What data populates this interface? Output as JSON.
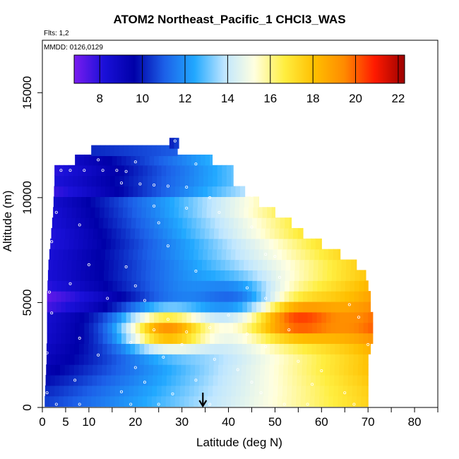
{
  "chart_data": {
    "type": "heatmap",
    "title": "ATOM2 Northeast_Pacific_1 CHCl3_WAS",
    "flights_note": "Flts: 1,2",
    "dates_note": "MMDD: 0126,0129",
    "xlabel": "Latitude (deg N)",
    "ylabel": "Altitude (m)",
    "xlim": [
      0,
      85
    ],
    "ylim": [
      0,
      17500
    ],
    "x_ticks": [
      0,
      5,
      10,
      20,
      30,
      40,
      50,
      60,
      70,
      80
    ],
    "x_minor_ticks": [
      15,
      25,
      35,
      45,
      55,
      65,
      75,
      85
    ],
    "y_ticks": [
      0,
      5000,
      10000,
      15000
    ],
    "colorbar": {
      "min": 6.8,
      "max": 22.3,
      "ticks": [
        8,
        10,
        12,
        14,
        16,
        18,
        20,
        22
      ],
      "colors": [
        "#7a1cf0",
        "#1a10d8",
        "#0000a8",
        "#1c60e8",
        "#21a8ff",
        "#bfe6ff",
        "#ffffe0",
        "#ffee40",
        "#ffbf00",
        "#ff8a00",
        "#ff1a00",
        "#9c0000"
      ]
    },
    "marker": {
      "latitude": 34.5,
      "symbol": "down-arrow"
    },
    "profile_rows": [
      {
        "alt": 12600,
        "lat_min": 27.3,
        "lat_max": 29.3,
        "c_start": 10.0,
        "c_end": 10.6
      },
      {
        "alt": 12250,
        "lat_min": 10.5,
        "lat_max": 29.0,
        "c_start": 10.2,
        "c_end": 11.0
      },
      {
        "alt": 11800,
        "lat_min": 7.0,
        "lat_max": 36.5,
        "c_start": 8.8,
        "c_end": 12.6
      },
      {
        "alt": 11300,
        "lat_min": 2.6,
        "lat_max": 41.0,
        "c_start": 8.0,
        "c_end": 13.0
      },
      {
        "alt": 10800,
        "lat_min": 2.6,
        "lat_max": 41.0,
        "c_start": 8.2,
        "c_end": 13.0
      },
      {
        "alt": 10300,
        "lat_min": 2.5,
        "lat_max": 43.5,
        "c_start": 7.8,
        "c_end": 13.8
      },
      {
        "alt": 9800,
        "lat_min": 2.4,
        "lat_max": 46.5,
        "c_start": 8.6,
        "c_end": 15.6
      },
      {
        "alt": 9300,
        "lat_min": 2.3,
        "lat_max": 50.0,
        "c_start": 8.4,
        "c_end": 16.3
      },
      {
        "alt": 8800,
        "lat_min": 2.1,
        "lat_max": 53.5,
        "c_start": 8.3,
        "c_end": 16.6
      },
      {
        "alt": 8300,
        "lat_min": 1.9,
        "lat_max": 56.0,
        "c_start": 8.1,
        "c_end": 16.9
      },
      {
        "alt": 7800,
        "lat_min": 1.7,
        "lat_max": 60.0,
        "c_start": 8.1,
        "c_end": 17.0
      },
      {
        "alt": 7300,
        "lat_min": 1.5,
        "lat_max": 64.0,
        "c_start": 8.3,
        "c_end": 17.3
      },
      {
        "alt": 6800,
        "lat_min": 1.3,
        "lat_max": 67.5,
        "c_start": 8.3,
        "c_end": 17.5
      },
      {
        "alt": 6300,
        "lat_min": 1.2,
        "lat_max": 69.5,
        "c_start": 8.3,
        "c_end": 17.8
      },
      {
        "alt": 5800,
        "lat_min": 1.1,
        "lat_max": 70.0,
        "c_start": 8.0,
        "c_end": 18.3
      },
      {
        "alt": 5300,
        "lat_min": 1.0,
        "lat_max": 70.5,
        "c_start": 7.2,
        "c_end": 18.8
      },
      {
        "alt": 4800,
        "lat_min": 1.0,
        "lat_max": 70.5,
        "c_start": 7.6,
        "c_end": 19.3
      },
      {
        "alt": 4300,
        "lat_min": 1.0,
        "lat_max": 71.0,
        "c_start": 8.5,
        "c_end": 19.8
      },
      {
        "alt": 3800,
        "lat_min": 1.0,
        "lat_max": 71.0,
        "c_start": 8.6,
        "c_end": 20.0
      },
      {
        "alt": 3300,
        "lat_min": 1.0,
        "lat_max": 71.0,
        "c_start": 8.7,
        "c_end": 19.2
      },
      {
        "alt": 2800,
        "lat_min": 0.9,
        "lat_max": 70.5,
        "c_start": 8.9,
        "c_end": 18.4
      },
      {
        "alt": 2300,
        "lat_min": 0.9,
        "lat_max": 70.0,
        "c_start": 9.1,
        "c_end": 18.0
      },
      {
        "alt": 1800,
        "lat_min": 0.8,
        "lat_max": 70.0,
        "c_start": 9.4,
        "c_end": 18.0
      },
      {
        "alt": 1300,
        "lat_min": 0.7,
        "lat_max": 70.0,
        "c_start": 9.8,
        "c_end": 17.8
      },
      {
        "alt": 800,
        "lat_min": 0.6,
        "lat_max": 70.0,
        "c_start": 10.2,
        "c_end": 17.6
      },
      {
        "alt": 300,
        "lat_min": 0.5,
        "lat_max": 70.0,
        "c_start": 10.5,
        "c_end": 17.5
      }
    ],
    "hotspots": [
      {
        "lat": 55,
        "alt": 4200,
        "value": 21.2
      },
      {
        "lat": 27,
        "alt": 3700,
        "value": 20.5
      },
      {
        "lat": 40,
        "alt": 5300,
        "value": 10.8
      }
    ],
    "sample_points": [
      {
        "lat": 28.5,
        "alt": 12700
      },
      {
        "lat": 4,
        "alt": 11300
      },
      {
        "lat": 6,
        "alt": 11300
      },
      {
        "lat": 9,
        "alt": 11300
      },
      {
        "lat": 13,
        "alt": 11300
      },
      {
        "lat": 16,
        "alt": 11300
      },
      {
        "lat": 18,
        "alt": 11250
      },
      {
        "lat": 12,
        "alt": 11800
      },
      {
        "lat": 20,
        "alt": 11700
      },
      {
        "lat": 33,
        "alt": 11600
      },
      {
        "lat": 17,
        "alt": 10700
      },
      {
        "lat": 21,
        "alt": 10650
      },
      {
        "lat": 24,
        "alt": 10600
      },
      {
        "lat": 27,
        "alt": 10550
      },
      {
        "lat": 31,
        "alt": 10500
      },
      {
        "lat": 2,
        "alt": 10200
      },
      {
        "lat": 36,
        "alt": 10000
      },
      {
        "lat": 45,
        "alt": 10100
      },
      {
        "lat": 55,
        "alt": 9900
      },
      {
        "lat": 24,
        "alt": 9600
      },
      {
        "lat": 31,
        "alt": 9500
      },
      {
        "lat": 38,
        "alt": 9300
      },
      {
        "lat": 3,
        "alt": 9300
      },
      {
        "lat": 8,
        "alt": 8700
      },
      {
        "lat": 25,
        "alt": 8800
      },
      {
        "lat": 45,
        "alt": 8600
      },
      {
        "lat": 2,
        "alt": 7900
      },
      {
        "lat": 27,
        "alt": 7700
      },
      {
        "lat": 48,
        "alt": 7300
      },
      {
        "lat": 50,
        "alt": 7200
      },
      {
        "lat": 10,
        "alt": 6800
      },
      {
        "lat": 18,
        "alt": 6700
      },
      {
        "lat": 33,
        "alt": 6500
      },
      {
        "lat": 51,
        "alt": 6200
      },
      {
        "lat": 6,
        "alt": 5900
      },
      {
        "lat": 20,
        "alt": 5800
      },
      {
        "lat": 44,
        "alt": 5700
      },
      {
        "lat": 1.5,
        "alt": 5500
      },
      {
        "lat": 14,
        "alt": 5200
      },
      {
        "lat": 22,
        "alt": 5100
      },
      {
        "lat": 48,
        "alt": 5200
      },
      {
        "lat": 66,
        "alt": 4900
      },
      {
        "lat": 2,
        "alt": 4500
      },
      {
        "lat": 27,
        "alt": 4200
      },
      {
        "lat": 40,
        "alt": 4400
      },
      {
        "lat": 68,
        "alt": 4300
      },
      {
        "lat": 24,
        "alt": 3700
      },
      {
        "lat": 31,
        "alt": 3600
      },
      {
        "lat": 36,
        "alt": 3800
      },
      {
        "lat": 44,
        "alt": 3500
      },
      {
        "lat": 53,
        "alt": 3700
      },
      {
        "lat": 8,
        "alt": 3300
      },
      {
        "lat": 19,
        "alt": 3100
      },
      {
        "lat": 30,
        "alt": 3000
      },
      {
        "lat": 48,
        "alt": 2900
      },
      {
        "lat": 70,
        "alt": 3000
      },
      {
        "lat": 1,
        "alt": 2600
      },
      {
        "lat": 12,
        "alt": 2500
      },
      {
        "lat": 26,
        "alt": 2400
      },
      {
        "lat": 37,
        "alt": 2300
      },
      {
        "lat": 55,
        "alt": 2200
      },
      {
        "lat": 20,
        "alt": 1900
      },
      {
        "lat": 42,
        "alt": 1800
      },
      {
        "lat": 60,
        "alt": 1750
      },
      {
        "lat": 7,
        "alt": 1300
      },
      {
        "lat": 22,
        "alt": 1200
      },
      {
        "lat": 33,
        "alt": 1300
      },
      {
        "lat": 45,
        "alt": 1200
      },
      {
        "lat": 58,
        "alt": 1100
      },
      {
        "lat": 1,
        "alt": 700
      },
      {
        "lat": 17,
        "alt": 750
      },
      {
        "lat": 28,
        "alt": 650
      },
      {
        "lat": 47,
        "alt": 700
      },
      {
        "lat": 65,
        "alt": 700
      },
      {
        "lat": 3,
        "alt": 150
      },
      {
        "lat": 8,
        "alt": 150
      },
      {
        "lat": 19,
        "alt": 150
      },
      {
        "lat": 25,
        "alt": 150
      },
      {
        "lat": 36,
        "alt": 150
      },
      {
        "lat": 52,
        "alt": 150
      },
      {
        "lat": 57,
        "alt": 150
      },
      {
        "lat": 67,
        "alt": 150
      }
    ]
  }
}
